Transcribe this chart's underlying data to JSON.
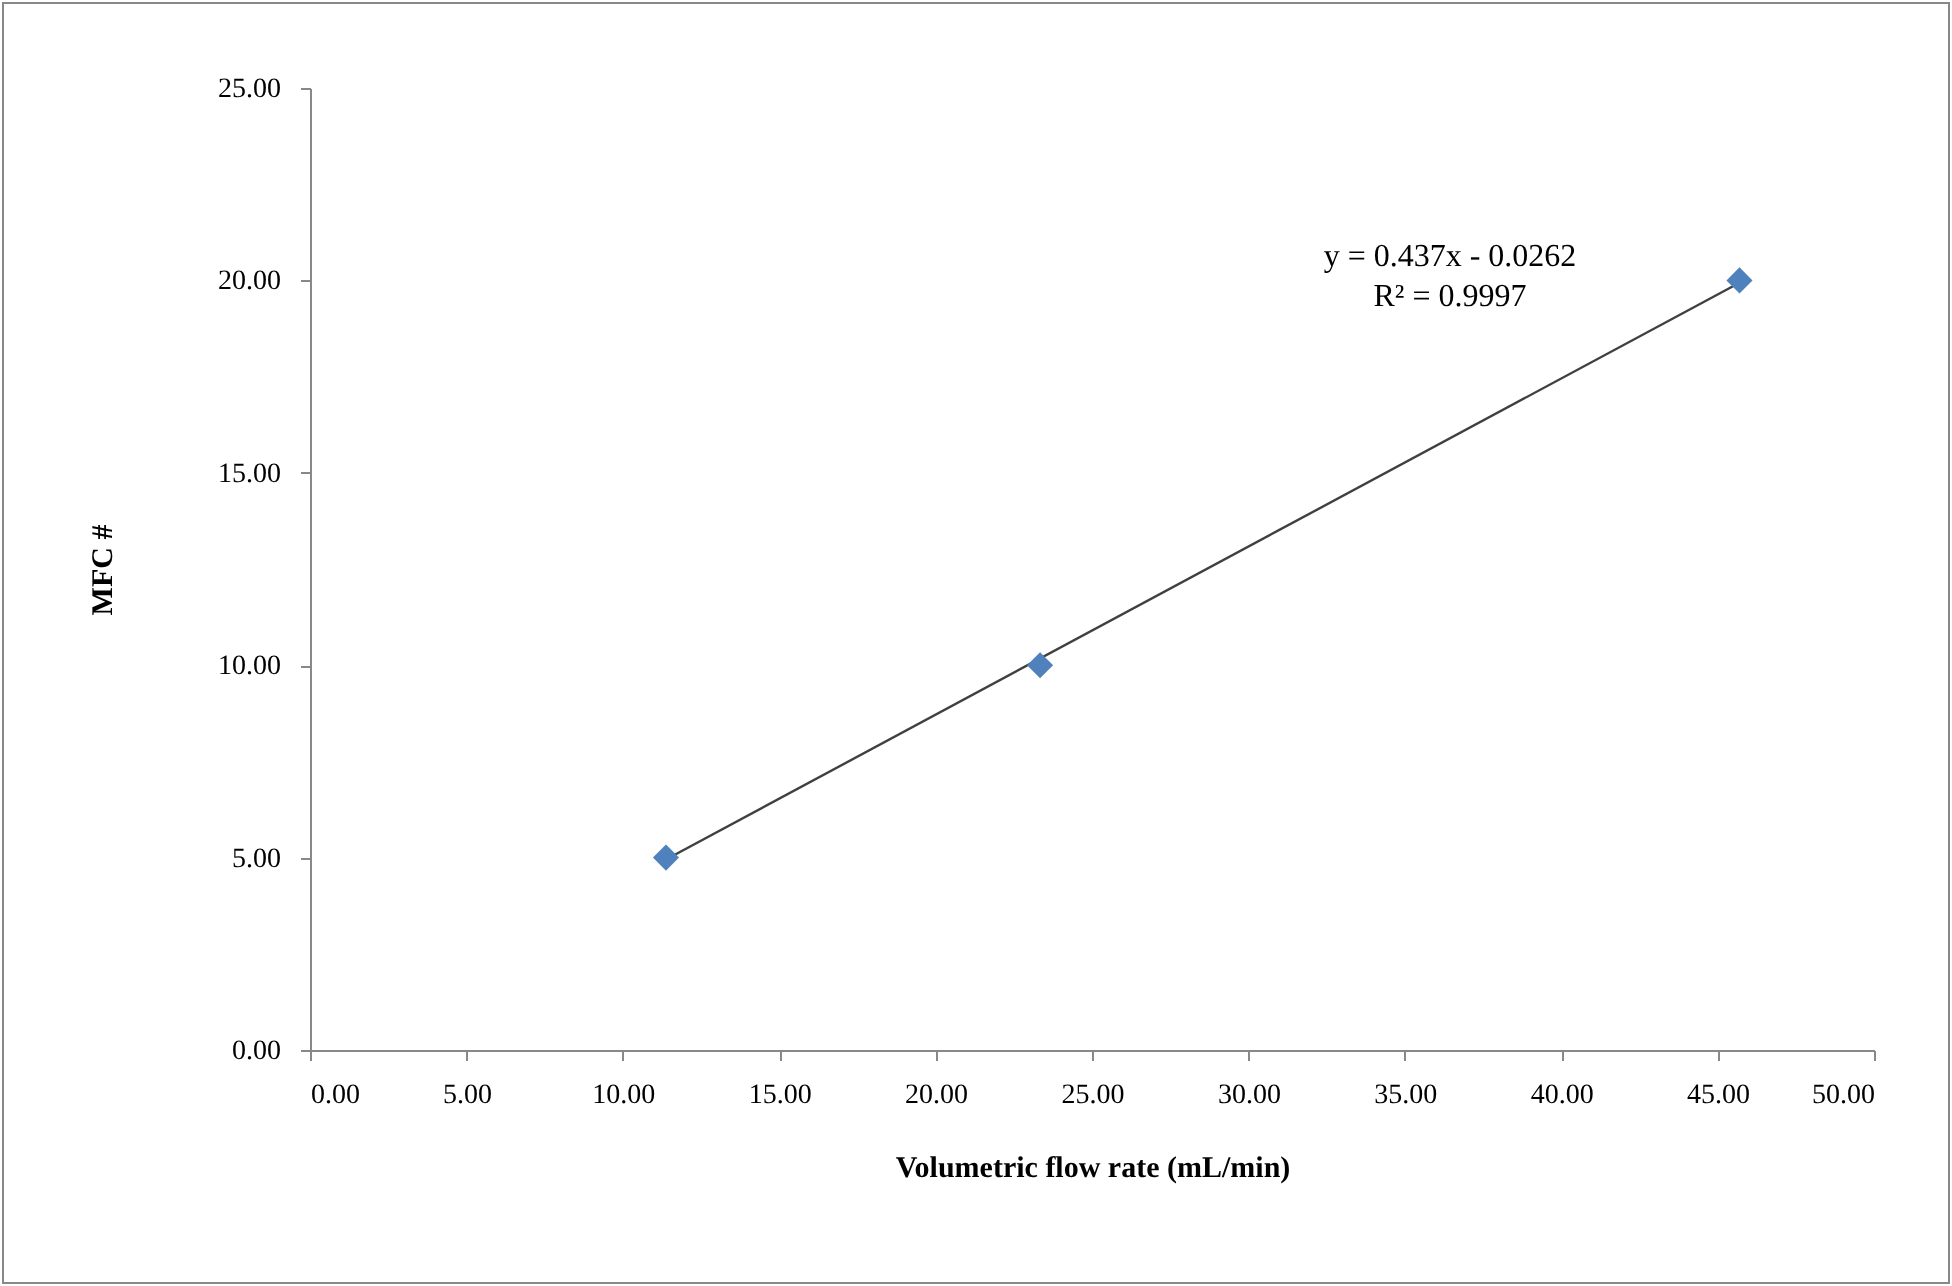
{
  "chart_data": {
    "type": "scatter",
    "xlabel": "Volumetric flow rate (mL/min)",
    "ylabel": "MFC #",
    "annotations": [
      "y = 0.437x - 0.0262",
      "R² = 0.9997"
    ],
    "xlim": [
      0,
      50
    ],
    "ylim": [
      0,
      25
    ],
    "xticks": [
      {
        "value": 0,
        "label": "0.00"
      },
      {
        "value": 5,
        "label": "5.00"
      },
      {
        "value": 10,
        "label": "10.00"
      },
      {
        "value": 15,
        "label": "15.00"
      },
      {
        "value": 20,
        "label": "20.00"
      },
      {
        "value": 25,
        "label": "25.00"
      },
      {
        "value": 30,
        "label": "30.00"
      },
      {
        "value": 35,
        "label": "35.00"
      },
      {
        "value": 40,
        "label": "40.00"
      },
      {
        "value": 45,
        "label": "45.00"
      },
      {
        "value": 50,
        "label": "50.00"
      }
    ],
    "yticks": [
      {
        "value": 0,
        "label": "0.00"
      },
      {
        "value": 5,
        "label": "5.00"
      },
      {
        "value": 10,
        "label": "10.00"
      },
      {
        "value": 15,
        "label": "15.00"
      },
      {
        "value": 20,
        "label": "20.00"
      },
      {
        "value": 25,
        "label": "25.00"
      }
    ],
    "grid": false,
    "series": [
      {
        "color": "#4f81bd",
        "marker": "diamond",
        "x": [
          11.38,
          23.34,
          45.7
        ],
        "values": [
          5,
          10,
          20
        ]
      },
      {
        "type": "line",
        "color": "#404040",
        "marker": "none",
        "x": [
          11.38,
          45.7
        ],
        "values": [
          4.95,
          19.94
        ]
      }
    ]
  }
}
